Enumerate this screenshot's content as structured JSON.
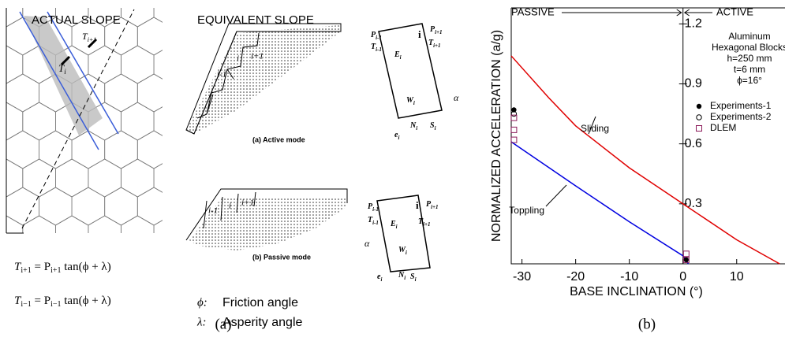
{
  "diagram": {
    "actual_title": "ACTUAL SLOPE",
    "equivalent_title": "EQUIVALENT SLOPE",
    "actual_labels": [
      {
        "main": "T",
        "sub": "i"
      },
      {
        "main": "T",
        "sub": "i+1"
      }
    ],
    "block_labels": [
      "i-1",
      "i",
      "i+1"
    ],
    "fbd_labels": [
      {
        "main": "P",
        "sub": "i-1"
      },
      {
        "main": "T",
        "sub": "i-1"
      },
      {
        "main": "E",
        "sub": "i"
      },
      {
        "main": "W",
        "sub": "i"
      },
      {
        "main": "P",
        "sub": "i+1"
      },
      {
        "main": "T",
        "sub": "i+1"
      },
      {
        "main": "N",
        "sub": "i"
      },
      {
        "main": "S",
        "sub": "i"
      },
      {
        "main": "e",
        "sub": "i"
      }
    ],
    "fbd_symbols": [
      "i",
      "α"
    ],
    "active_caption": "(a) Active mode",
    "passive_caption": "(b) Passive mode",
    "equations": [
      {
        "lhs": "T",
        "lhs_sub": "i+1",
        "mid": " = P",
        "mid_sub": "i+1",
        "rhs": " tan(ϕ + λ)"
      },
      {
        "lhs": "T",
        "lhs_sub": "i−1",
        "mid": " = P",
        "mid_sub": "i−1",
        "rhs": " tan(ϕ + λ)"
      }
    ],
    "legend": [
      {
        "symbol": "ϕ:",
        "text": "Friction angle"
      },
      {
        "symbol": "λ:",
        "text": "Asperity angle"
      }
    ],
    "caption": "(a)"
  },
  "chart_data": {
    "type": "line",
    "xlabel": "BASE INCLINATION (°)",
    "ylabel": "NORMALIZED ACCELERATION (a/g)",
    "xlim": [
      -32,
      19
    ],
    "ylim": [
      0,
      1.28
    ],
    "xticks": [
      -30,
      -20,
      -10,
      0,
      10
    ],
    "yticks": [
      0.3,
      0.6,
      0.9,
      1.2
    ],
    "passive_label": "PASSIVE",
    "active_label": "ACTIVE",
    "annotations": [
      "Aluminum",
      "Hexagonal Blocks",
      "h=250 mm",
      "t=6 mm",
      "ϕ=16°"
    ],
    "series": [
      {
        "name": "Sliding",
        "color": "#e00000",
        "kind": "line",
        "x": [
          -32,
          -25,
          -20,
          -10,
          0,
          10,
          18
        ],
        "values": [
          1.04,
          0.83,
          0.69,
          0.48,
          0.3,
          0.12,
          0
        ]
      },
      {
        "name": "Toppling",
        "color": "#0000e0",
        "kind": "line",
        "x": [
          -32,
          -20,
          -10,
          0,
          1
        ],
        "values": [
          0.61,
          0.39,
          0.21,
          0.04,
          0
        ]
      },
      {
        "name": "Experiments-1",
        "color": "#000000",
        "kind": "filled",
        "x": [
          -31.5,
          0.6
        ],
        "values": [
          0.77,
          0.02
        ]
      },
      {
        "name": "Experiments-2",
        "color": "#000000",
        "kind": "open",
        "x": [
          -31.5
        ],
        "values": [
          0.75
        ]
      },
      {
        "name": "DLEM",
        "color": "#8b1a5a",
        "kind": "square",
        "x": [
          -31.5,
          -31.5,
          -31.5,
          0.6,
          0.6
        ],
        "values": [
          0.73,
          0.67,
          0.62,
          0.05,
          0.02
        ]
      }
    ],
    "caption": "(b)"
  }
}
